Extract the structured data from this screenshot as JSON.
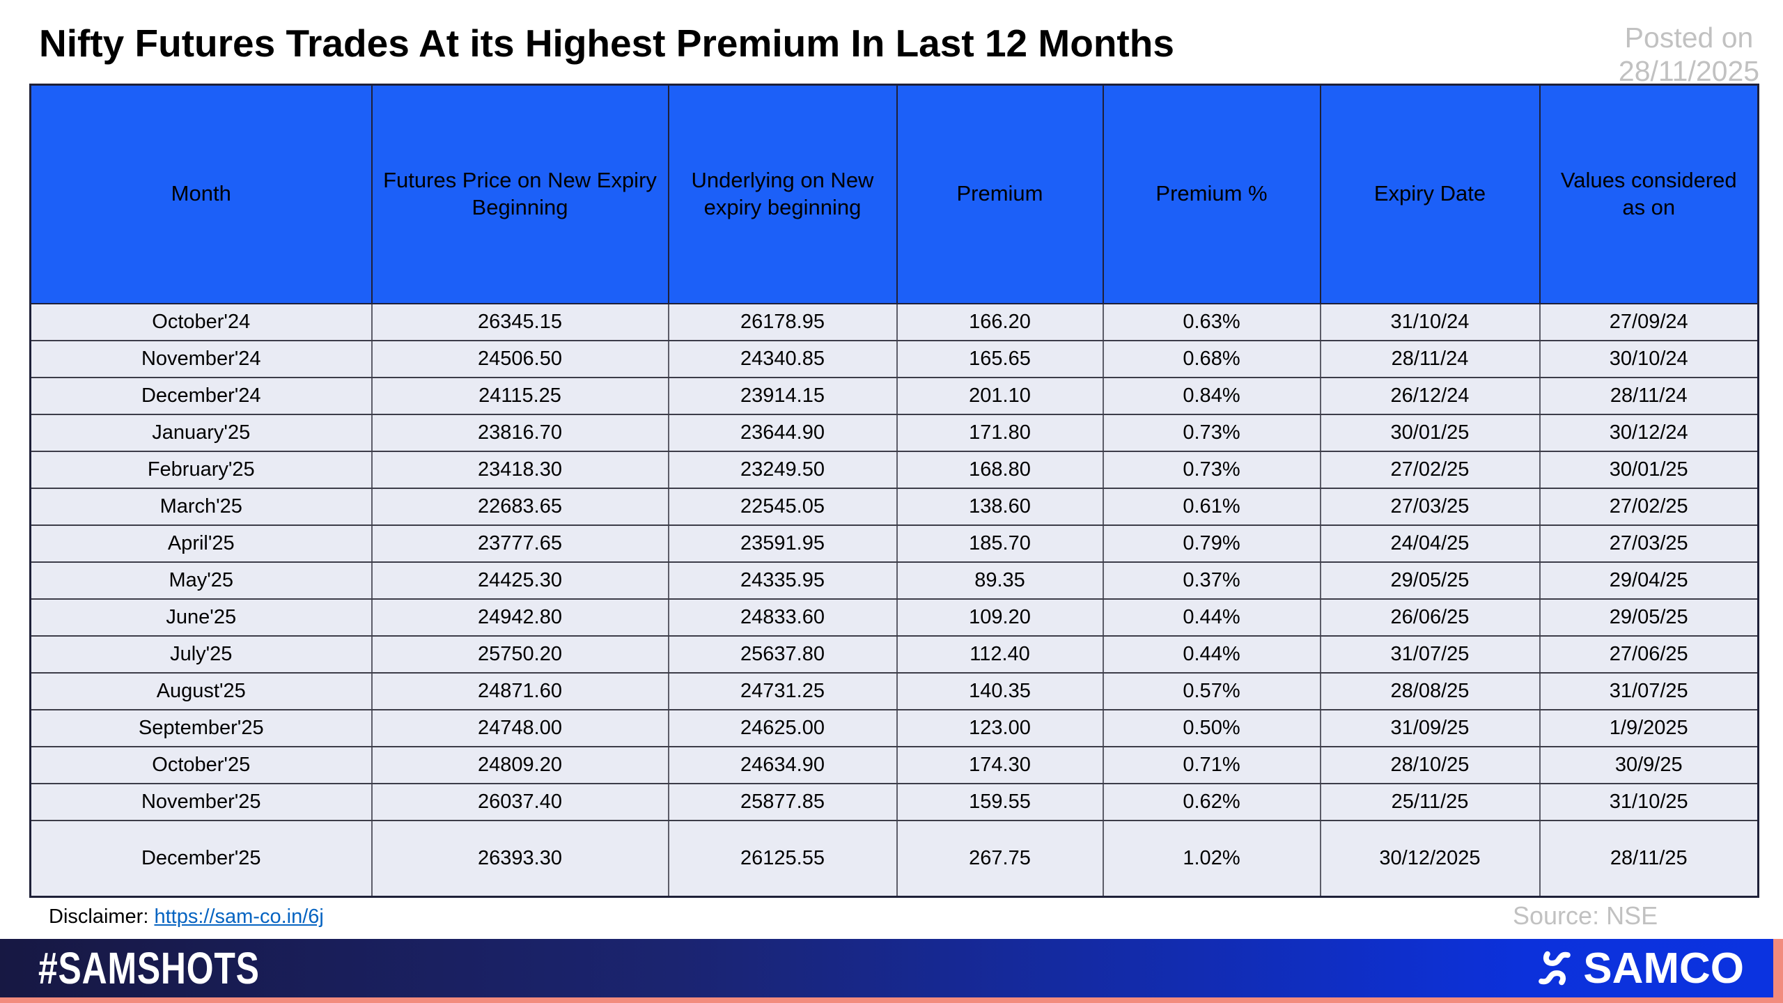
{
  "title": "Nifty Futures Trades At its Highest Premium In Last 12 Months",
  "posted_on": {
    "label": "Posted on",
    "date": "28/11/2025"
  },
  "chart_data": {
    "type": "table",
    "title": "Nifty Futures Trades At its Highest Premium In Last 12 Months",
    "columns": [
      "Month",
      "Futures Price on New Expiry Beginning",
      "Underlying on New expiry beginning",
      "Premium",
      "Premium %",
      "Expiry Date",
      "Values considered as on"
    ],
    "rows": [
      [
        "October'24",
        "26345.15",
        "26178.95",
        "166.20",
        "0.63%",
        "31/10/24",
        "27/09/24"
      ],
      [
        "November'24",
        "24506.50",
        "24340.85",
        "165.65",
        "0.68%",
        "28/11/24",
        "30/10/24"
      ],
      [
        "December'24",
        "24115.25",
        "23914.15",
        "201.10",
        "0.84%",
        "26/12/24",
        "28/11/24"
      ],
      [
        "January'25",
        "23816.70",
        "23644.90",
        "171.80",
        "0.73%",
        "30/01/25",
        "30/12/24"
      ],
      [
        "February'25",
        "23418.30",
        "23249.50",
        "168.80",
        "0.73%",
        "27/02/25",
        "30/01/25"
      ],
      [
        "March'25",
        "22683.65",
        "22545.05",
        "138.60",
        "0.61%",
        "27/03/25",
        "27/02/25"
      ],
      [
        "April'25",
        "23777.65",
        "23591.95",
        "185.70",
        "0.79%",
        "24/04/25",
        "27/03/25"
      ],
      [
        "May'25",
        "24425.30",
        "24335.95",
        "89.35",
        "0.37%",
        "29/05/25",
        "29/04/25"
      ],
      [
        "June'25",
        "24942.80",
        "24833.60",
        "109.20",
        "0.44%",
        "26/06/25",
        "29/05/25"
      ],
      [
        "July'25",
        "25750.20",
        "25637.80",
        "112.40",
        "0.44%",
        "31/07/25",
        "27/06/25"
      ],
      [
        "August'25",
        "24871.60",
        "24731.25",
        "140.35",
        "0.57%",
        "28/08/25",
        "31/07/25"
      ],
      [
        "September'25",
        "24748.00",
        "24625.00",
        "123.00",
        "0.50%",
        "31/09/25",
        "1/9/2025"
      ],
      [
        "October'25",
        "24809.20",
        "24634.90",
        "174.30",
        "0.71%",
        "28/10/25",
        "30/9/25"
      ],
      [
        "November'25",
        "26037.40",
        "25877.85",
        "159.55",
        "0.62%",
        "25/11/25",
        "31/10/25"
      ],
      [
        "December'25",
        "26393.30",
        "26125.55",
        "267.75",
        "1.02%",
        "30/12/2025",
        "28/11/25"
      ]
    ]
  },
  "disclaimer": {
    "label": "Disclaimer:",
    "link_text": "https://sam-co.in/6j"
  },
  "source": "Source: NSE",
  "footer": {
    "hashtag": "#SAMSHOTS",
    "brand": "SAMCO",
    "logo_icon": "samco-swirl-icon"
  },
  "colors": {
    "header_bg": "#1C60F8",
    "row_bg": "#E9EBF4",
    "accent_salmon": "#F28B7D",
    "footer_navy": "#171843",
    "footer_blue": "#0C31DB",
    "link_blue": "#0563C1",
    "muted_gray": "#C1C1C1"
  }
}
